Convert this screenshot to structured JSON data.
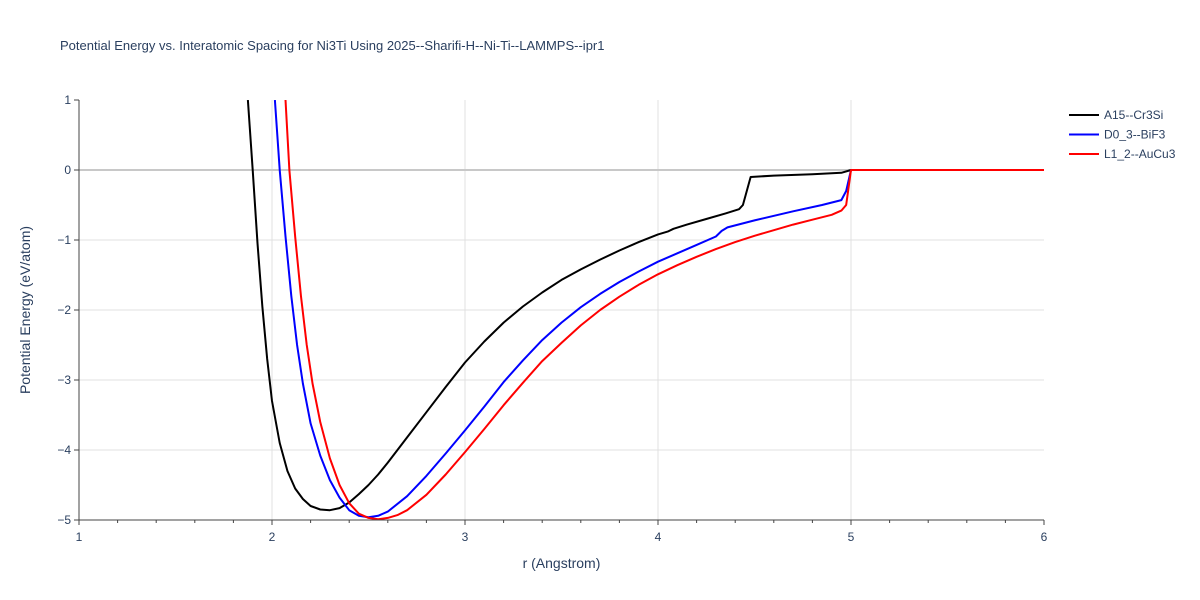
{
  "chart_data": {
    "type": "line",
    "title": "Potential Energy vs. Interatomic Spacing for Ni3Ti Using 2025--Sharifi-H--Ni-Ti--LAMMPS--ipr1",
    "xlabel": "r (Angstrom)",
    "ylabel": "Potential Energy (eV/atom)",
    "xlim": [
      1,
      6
    ],
    "ylim": [
      -5,
      1
    ],
    "xticks": [
      "1",
      "2",
      "3",
      "4",
      "5",
      "6"
    ],
    "yticks": [
      "1",
      "0",
      "−1",
      "−2",
      "−3",
      "−4",
      "−5"
    ],
    "grid": true,
    "legend_position": "top-right",
    "series": [
      {
        "name": "A15--Cr3Si",
        "color": "#000000",
        "x": [
          1.875,
          1.9,
          1.925,
          1.95,
          1.975,
          2.0,
          2.04,
          2.08,
          2.12,
          2.16,
          2.2,
          2.25,
          2.3,
          2.35,
          2.4,
          2.45,
          2.5,
          2.55,
          2.6,
          2.7,
          2.8,
          2.9,
          3.0,
          3.1,
          3.2,
          3.3,
          3.4,
          3.5,
          3.6,
          3.7,
          3.8,
          3.9,
          4.0,
          4.05,
          4.08,
          4.15,
          4.25,
          4.35,
          4.42,
          4.44,
          4.48,
          4.6,
          4.8,
          4.95,
          5.0,
          5.2,
          5.5,
          6.0
        ],
        "y": [
          1.0,
          0.0,
          -1.05,
          -1.95,
          -2.7,
          -3.3,
          -3.9,
          -4.3,
          -4.55,
          -4.7,
          -4.8,
          -4.85,
          -4.86,
          -4.83,
          -4.75,
          -4.63,
          -4.5,
          -4.35,
          -4.18,
          -3.82,
          -3.46,
          -3.1,
          -2.75,
          -2.45,
          -2.18,
          -1.95,
          -1.75,
          -1.57,
          -1.42,
          -1.28,
          -1.15,
          -1.03,
          -0.92,
          -0.88,
          -0.84,
          -0.78,
          -0.7,
          -0.62,
          -0.56,
          -0.5,
          -0.1,
          -0.08,
          -0.06,
          -0.04,
          0.0,
          0.0,
          0.0,
          0.0
        ]
      },
      {
        "name": "D0_3--BiF3",
        "color": "#0000ff",
        "x": [
          2.015,
          2.04,
          2.07,
          2.1,
          2.13,
          2.16,
          2.2,
          2.25,
          2.3,
          2.35,
          2.4,
          2.45,
          2.5,
          2.55,
          2.6,
          2.7,
          2.8,
          2.9,
          3.0,
          3.1,
          3.2,
          3.3,
          3.4,
          3.5,
          3.6,
          3.7,
          3.8,
          3.9,
          4.0,
          4.1,
          4.2,
          4.3,
          4.33,
          4.36,
          4.5,
          4.7,
          4.85,
          4.95,
          4.975,
          5.0,
          5.2,
          5.5,
          6.0
        ],
        "y": [
          1.0,
          0.0,
          -0.95,
          -1.8,
          -2.5,
          -3.05,
          -3.62,
          -4.08,
          -4.43,
          -4.68,
          -4.86,
          -4.94,
          -4.96,
          -4.94,
          -4.88,
          -4.66,
          -4.37,
          -4.05,
          -3.72,
          -3.38,
          -3.03,
          -2.72,
          -2.43,
          -2.18,
          -1.96,
          -1.77,
          -1.6,
          -1.45,
          -1.31,
          -1.19,
          -1.07,
          -0.95,
          -0.87,
          -0.82,
          -0.72,
          -0.59,
          -0.5,
          -0.43,
          -0.3,
          0.0,
          0.0,
          0.0,
          0.0
        ]
      },
      {
        "name": "L1_2--AuCu3",
        "color": "#ff0000",
        "x": [
          2.07,
          2.09,
          2.12,
          2.15,
          2.18,
          2.21,
          2.25,
          2.3,
          2.35,
          2.4,
          2.45,
          2.5,
          2.55,
          2.6,
          2.65,
          2.7,
          2.8,
          2.9,
          3.0,
          3.1,
          3.2,
          3.3,
          3.4,
          3.5,
          3.6,
          3.7,
          3.8,
          3.9,
          4.0,
          4.1,
          4.2,
          4.3,
          4.4,
          4.5,
          4.6,
          4.7,
          4.8,
          4.9,
          4.95,
          4.975,
          5.0,
          5.2,
          5.5,
          6.0
        ],
        "y": [
          1.0,
          0.0,
          -0.95,
          -1.8,
          -2.5,
          -3.05,
          -3.6,
          -4.12,
          -4.5,
          -4.76,
          -4.91,
          -4.97,
          -4.99,
          -4.97,
          -4.93,
          -4.86,
          -4.64,
          -4.35,
          -4.03,
          -3.7,
          -3.36,
          -3.04,
          -2.73,
          -2.47,
          -2.22,
          -2.0,
          -1.81,
          -1.64,
          -1.49,
          -1.36,
          -1.24,
          -1.13,
          -1.03,
          -0.94,
          -0.86,
          -0.78,
          -0.71,
          -0.64,
          -0.58,
          -0.5,
          0.0,
          0.0,
          0.0,
          0.0
        ]
      }
    ]
  }
}
